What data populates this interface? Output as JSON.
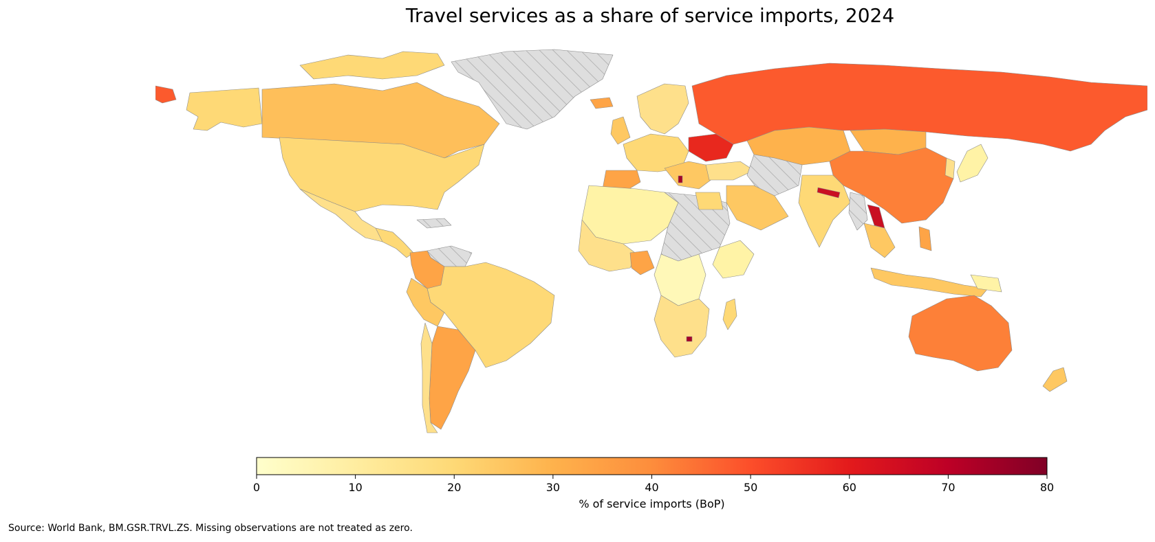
{
  "title": "Travel services as a share of service imports, 2024",
  "colorbar": {
    "label": "% of service imports (BoP)",
    "min": 0,
    "max": 80,
    "ticks": [
      "0",
      "10",
      "20",
      "30",
      "40",
      "50",
      "60",
      "70",
      "80"
    ],
    "colormap": "YlOrRd",
    "stops": [
      "#ffffcc",
      "#ffeda0",
      "#fed976",
      "#feb24c",
      "#fd8d3c",
      "#fc4e2a",
      "#e31a1c",
      "#bd0026",
      "#800026"
    ]
  },
  "missing_color": "#dddddd",
  "source": "Source: World Bank, BM.GSR.TRVL.ZS. Missing observations are not treated as zero."
}
